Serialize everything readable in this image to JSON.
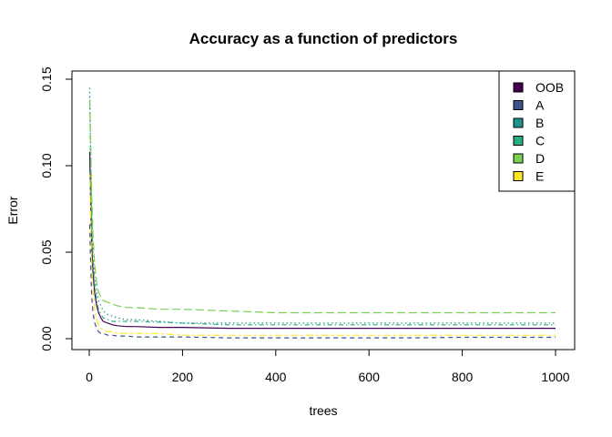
{
  "chart_data": {
    "type": "line",
    "title": "Accuracy as a function of predictors",
    "xlabel": "trees",
    "ylabel": "Error",
    "xlim": [
      0,
      1000
    ],
    "ylim": [
      0,
      0.15
    ],
    "xticks": [
      0,
      200,
      400,
      600,
      800,
      1000
    ],
    "yticks": [
      0.0,
      0.05,
      0.1,
      0.15
    ],
    "ytick_labels": [
      "0.00",
      "0.05",
      "0.10",
      "0.15"
    ],
    "legend_position": "top-right",
    "grid": false,
    "series": [
      {
        "name": "OOB",
        "color": "#440154",
        "dash": "solid",
        "x": [
          1,
          3,
          5,
          8,
          12,
          16,
          20,
          25,
          30,
          40,
          50,
          60,
          80,
          100,
          150,
          200,
          300,
          400,
          500,
          600,
          700,
          800,
          900,
          1000
        ],
        "y": [
          0.108,
          0.08,
          0.055,
          0.038,
          0.026,
          0.019,
          0.015,
          0.012,
          0.01,
          0.009,
          0.008,
          0.0075,
          0.007,
          0.007,
          0.0065,
          0.0065,
          0.006,
          0.006,
          0.006,
          0.006,
          0.006,
          0.006,
          0.006,
          0.006
        ]
      },
      {
        "name": "A",
        "color": "#3B528B",
        "dash": "dashed",
        "x": [
          1,
          3,
          5,
          8,
          12,
          16,
          20,
          25,
          30,
          40,
          50,
          60,
          80,
          100,
          150,
          200,
          300,
          400,
          500,
          600,
          700,
          800,
          900,
          1000
        ],
        "y": [
          0.066,
          0.045,
          0.025,
          0.015,
          0.009,
          0.006,
          0.004,
          0.003,
          0.003,
          0.002,
          0.002,
          0.0015,
          0.0015,
          0.001,
          0.001,
          0.001,
          0.0005,
          0.0005,
          0.0005,
          0.0005,
          0.0005,
          0.0008,
          0.0008,
          0.0008
        ]
      },
      {
        "name": "B",
        "color": "#21908C",
        "dash": "dotted",
        "x": [
          1,
          3,
          5,
          8,
          12,
          16,
          20,
          25,
          30,
          40,
          50,
          60,
          80,
          100,
          150,
          200,
          300,
          400,
          500,
          600,
          700,
          800,
          900,
          1000
        ],
        "y": [
          0.145,
          0.11,
          0.075,
          0.05,
          0.035,
          0.027,
          0.022,
          0.019,
          0.016,
          0.014,
          0.013,
          0.012,
          0.011,
          0.011,
          0.01,
          0.009,
          0.009,
          0.009,
          0.009,
          0.009,
          0.009,
          0.009,
          0.009,
          0.009
        ]
      },
      {
        "name": "C",
        "color": "#27AD81",
        "dash": "dotdash",
        "x": [
          1,
          3,
          5,
          8,
          12,
          16,
          20,
          25,
          30,
          40,
          50,
          60,
          80,
          100,
          150,
          200,
          300,
          400,
          500,
          600,
          700,
          800,
          900,
          1000
        ],
        "y": [
          0.14,
          0.1,
          0.07,
          0.046,
          0.03,
          0.022,
          0.017,
          0.014,
          0.012,
          0.011,
          0.01,
          0.01,
          0.01,
          0.01,
          0.0095,
          0.009,
          0.008,
          0.008,
          0.008,
          0.008,
          0.008,
          0.008,
          0.008,
          0.008
        ]
      },
      {
        "name": "D",
        "color": "#7AD151",
        "dash": "longdash",
        "x": [
          1,
          3,
          5,
          8,
          12,
          16,
          20,
          25,
          30,
          40,
          50,
          60,
          80,
          100,
          150,
          200,
          300,
          400,
          500,
          600,
          700,
          800,
          900,
          1000
        ],
        "y": [
          0.138,
          0.115,
          0.085,
          0.06,
          0.042,
          0.032,
          0.027,
          0.024,
          0.022,
          0.021,
          0.02,
          0.019,
          0.018,
          0.018,
          0.017,
          0.017,
          0.016,
          0.015,
          0.015,
          0.015,
          0.015,
          0.015,
          0.015,
          0.015
        ]
      },
      {
        "name": "E",
        "color": "#FDE725",
        "dash": "twodash",
        "x": [
          1,
          3,
          5,
          8,
          12,
          16,
          20,
          25,
          30,
          40,
          50,
          60,
          80,
          100,
          150,
          200,
          300,
          400,
          500,
          600,
          700,
          800,
          900,
          1000
        ],
        "y": [
          0.095,
          0.07,
          0.045,
          0.028,
          0.017,
          0.011,
          0.008,
          0.006,
          0.005,
          0.004,
          0.004,
          0.003,
          0.003,
          0.003,
          0.003,
          0.002,
          0.002,
          0.002,
          0.002,
          0.002,
          0.002,
          0.002,
          0.002,
          0.002
        ]
      }
    ]
  }
}
